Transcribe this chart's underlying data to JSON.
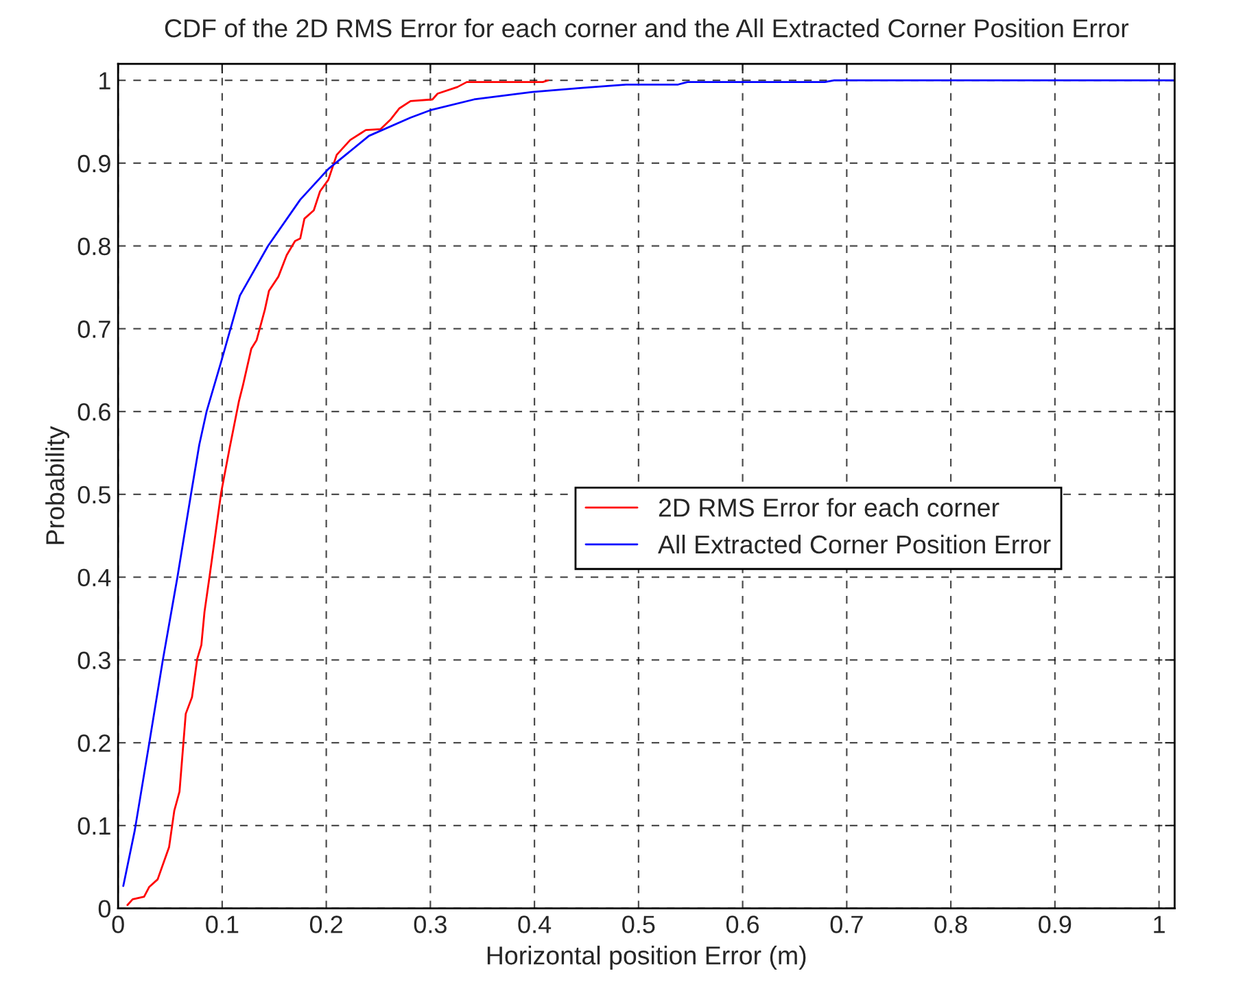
{
  "chart_data": {
    "type": "line",
    "title": "CDF of the 2D RMS Error for each corner and the All Extracted Corner Position Error",
    "xlabel": "Horizontal position Error (m)",
    "ylabel": "Probability",
    "xlim": [
      0,
      1.015
    ],
    "ylim": [
      0,
      1.02
    ],
    "xticks": [
      0,
      0.1,
      0.2,
      0.3,
      0.4,
      0.5,
      0.6,
      0.7,
      0.8,
      0.9,
      1
    ],
    "yticks": [
      0,
      0.1,
      0.2,
      0.3,
      0.4,
      0.5,
      0.6,
      0.7,
      0.8,
      0.9,
      1
    ],
    "grid": true,
    "legend": "right",
    "line_style": "solid",
    "series": [
      {
        "name": "2D RMS Error for each corner",
        "color": "#ff0000",
        "x": [
          0.009,
          0.014,
          0.025,
          0.03,
          0.038,
          0.049,
          0.054,
          0.059,
          0.065,
          0.071,
          0.076,
          0.08,
          0.083,
          0.088,
          0.099,
          0.107,
          0.116,
          0.12,
          0.128,
          0.133,
          0.141,
          0.145,
          0.154,
          0.162,
          0.17,
          0.175,
          0.179,
          0.188,
          0.194,
          0.202,
          0.21,
          0.223,
          0.233,
          0.238,
          0.252,
          0.262,
          0.27,
          0.281,
          0.302,
          0.307,
          0.326,
          0.335,
          0.408,
          0.413
        ],
        "values": [
          0.004,
          0.011,
          0.014,
          0.026,
          0.035,
          0.074,
          0.118,
          0.141,
          0.235,
          0.255,
          0.301,
          0.318,
          0.358,
          0.402,
          0.502,
          0.555,
          0.612,
          0.632,
          0.676,
          0.686,
          0.723,
          0.746,
          0.763,
          0.789,
          0.806,
          0.809,
          0.833,
          0.843,
          0.866,
          0.88,
          0.91,
          0.928,
          0.936,
          0.94,
          0.941,
          0.953,
          0.966,
          0.975,
          0.977,
          0.984,
          0.992,
          0.998,
          0.998,
          1.0
        ]
      },
      {
        "name": "All Extracted Corner Position Error",
        "color": "#0000ff",
        "x": [
          0.005,
          0.016,
          0.03,
          0.043,
          0.057,
          0.07,
          0.078,
          0.085,
          0.099,
          0.117,
          0.144,
          0.175,
          0.202,
          0.241,
          0.281,
          0.3,
          0.342,
          0.398,
          0.446,
          0.488,
          0.538,
          0.547,
          0.679,
          0.688,
          1.015
        ],
        "values": [
          0.027,
          0.094,
          0.2,
          0.3,
          0.4,
          0.5,
          0.56,
          0.6,
          0.66,
          0.74,
          0.8,
          0.856,
          0.893,
          0.933,
          0.955,
          0.964,
          0.977,
          0.986,
          0.991,
          0.995,
          0.995,
          0.998,
          0.998,
          1.0,
          1.0
        ]
      }
    ]
  }
}
